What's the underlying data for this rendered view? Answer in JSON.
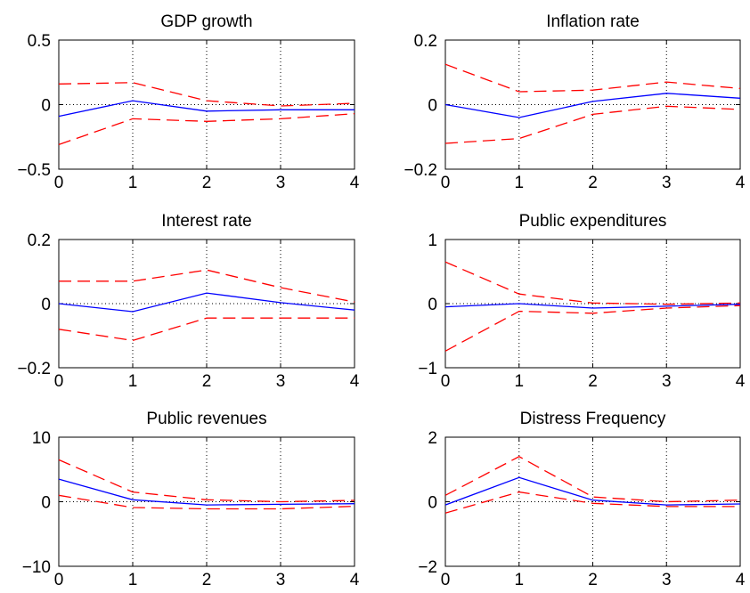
{
  "colors": {
    "irf": "#0000ff",
    "bands": "#ff0000"
  },
  "chart_data": [
    {
      "type": "line",
      "title": "GDP growth",
      "x": [
        0,
        1,
        2,
        3,
        4
      ],
      "xticks": [
        "0",
        "1",
        "2",
        "3",
        "4"
      ],
      "ylim": [
        -0.5,
        0.5
      ],
      "yticks": [
        -0.5,
        0,
        0.5
      ],
      "ytick_labels": [
        "−0.5",
        "0",
        "0.5"
      ],
      "series": [
        {
          "style": "solid-blue",
          "values": [
            -0.09,
            0.03,
            -0.05,
            -0.04,
            -0.04
          ]
        },
        {
          "style": "dashed-red",
          "values": [
            0.16,
            0.17,
            0.03,
            -0.01,
            0.01
          ]
        },
        {
          "style": "dashed-red",
          "values": [
            -0.31,
            -0.11,
            -0.13,
            -0.11,
            -0.07
          ]
        }
      ]
    },
    {
      "type": "line",
      "title": "Inflation rate",
      "x": [
        0,
        1,
        2,
        3,
        4
      ],
      "xticks": [
        "0",
        "1",
        "2",
        "3",
        "4"
      ],
      "ylim": [
        -0.2,
        0.2
      ],
      "yticks": [
        -0.2,
        0,
        0.2
      ],
      "ytick_labels": [
        "−0.2",
        "0",
        "0.2"
      ],
      "series": [
        {
          "style": "solid-blue",
          "values": [
            0.0,
            -0.04,
            0.01,
            0.035,
            0.02
          ]
        },
        {
          "style": "dashed-red",
          "values": [
            0.125,
            0.04,
            0.045,
            0.07,
            0.05
          ]
        },
        {
          "style": "dashed-red",
          "values": [
            -0.12,
            -0.105,
            -0.03,
            -0.005,
            -0.015
          ]
        }
      ]
    },
    {
      "type": "line",
      "title": "Interest rate",
      "x": [
        0,
        1,
        2,
        3,
        4
      ],
      "xticks": [
        "0",
        "1",
        "2",
        "3",
        "4"
      ],
      "ylim": [
        -0.2,
        0.2
      ],
      "yticks": [
        -0.2,
        0,
        0.2
      ],
      "ytick_labels": [
        "−0.2",
        "0",
        "0.2"
      ],
      "series": [
        {
          "style": "solid-blue",
          "values": [
            0.0,
            -0.025,
            0.033,
            0.003,
            -0.02
          ]
        },
        {
          "style": "dashed-red",
          "values": [
            0.07,
            0.07,
            0.105,
            0.05,
            0.005
          ]
        },
        {
          "style": "dashed-red",
          "values": [
            -0.08,
            -0.115,
            -0.045,
            -0.045,
            -0.045
          ]
        }
      ]
    },
    {
      "type": "line",
      "title": "Public expenditures",
      "x": [
        0,
        1,
        2,
        3,
        4
      ],
      "xticks": [
        "0",
        "1",
        "2",
        "3",
        "4"
      ],
      "ylim": [
        -1,
        1
      ],
      "yticks": [
        -1,
        0,
        1
      ],
      "ytick_labels": [
        "−1",
        "0",
        "1"
      ],
      "series": [
        {
          "style": "solid-blue",
          "values": [
            -0.05,
            0.0,
            -0.07,
            -0.04,
            -0.01
          ]
        },
        {
          "style": "dashed-red",
          "values": [
            0.65,
            0.15,
            0.01,
            -0.01,
            0.01
          ]
        },
        {
          "style": "dashed-red",
          "values": [
            -0.74,
            -0.12,
            -0.15,
            -0.07,
            -0.03
          ]
        }
      ]
    },
    {
      "type": "line",
      "title": "Public revenues",
      "x": [
        0,
        1,
        2,
        3,
        4
      ],
      "xticks": [
        "0",
        "1",
        "2",
        "3",
        "4"
      ],
      "ylim": [
        -10,
        10
      ],
      "yticks": [
        -10,
        0,
        10
      ],
      "ytick_labels": [
        "−10",
        "0",
        "10"
      ],
      "series": [
        {
          "style": "solid-blue",
          "values": [
            3.5,
            0.3,
            -0.5,
            -0.4,
            -0.3
          ]
        },
        {
          "style": "dashed-red",
          "values": [
            6.5,
            1.5,
            0.3,
            0.0,
            0.2
          ]
        },
        {
          "style": "dashed-red",
          "values": [
            1.0,
            -0.9,
            -1.1,
            -1.1,
            -0.7
          ]
        }
      ]
    },
    {
      "type": "line",
      "title": "Distress Frequency",
      "x": [
        0,
        1,
        2,
        3,
        4
      ],
      "xticks": [
        "0",
        "1",
        "2",
        "3",
        "4"
      ],
      "ylim": [
        -2,
        2
      ],
      "yticks": [
        -2,
        0,
        2
      ],
      "ytick_labels": [
        "−2",
        "0",
        "2"
      ],
      "series": [
        {
          "style": "solid-blue",
          "values": [
            -0.1,
            0.75,
            0.05,
            -0.1,
            -0.07
          ]
        },
        {
          "style": "dashed-red",
          "values": [
            0.2,
            1.4,
            0.15,
            0.0,
            0.05
          ]
        },
        {
          "style": "dashed-red",
          "values": [
            -0.35,
            0.3,
            -0.05,
            -0.15,
            -0.15
          ]
        }
      ]
    }
  ]
}
